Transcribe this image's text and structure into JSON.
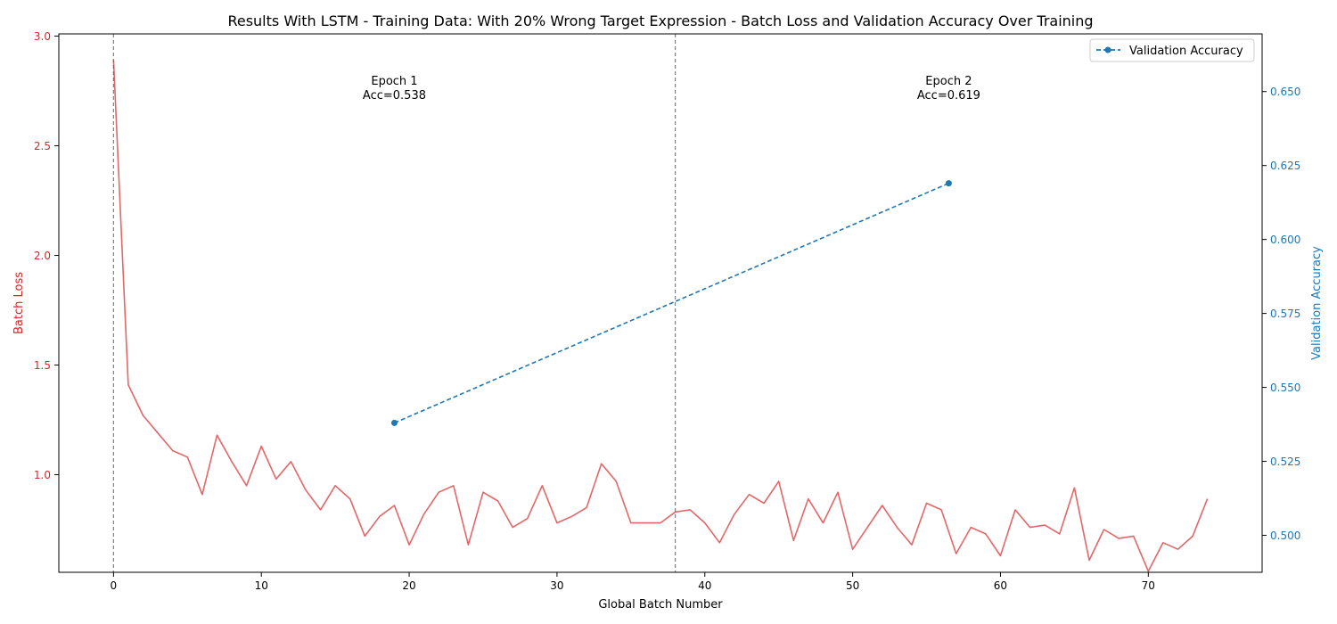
{
  "chart_data": {
    "type": "line",
    "title": "Results With LSTM - Training Data: With 20% Wrong Target Expression - Batch Loss and Validation Accuracy Over Training",
    "xlabel": "Global Batch Number",
    "ylabel_left": "Batch Loss",
    "ylabel_right": "Validation Accuracy",
    "xlim": [
      -3.7,
      77.7
    ],
    "ylim_left": [
      0.555,
      3.01
    ],
    "ylim_right": [
      0.4875,
      0.6695
    ],
    "x_ticks": [
      0,
      10,
      20,
      30,
      40,
      50,
      60,
      70
    ],
    "y_ticks_left": [
      1.0,
      1.5,
      2.0,
      2.5,
      3.0
    ],
    "y_ticks_left_labels": [
      "1.0",
      "1.5",
      "2.0",
      "2.5",
      "3.0"
    ],
    "y_ticks_right": [
      0.5,
      0.525,
      0.55,
      0.575,
      0.6,
      0.625,
      0.65
    ],
    "y_ticks_right_labels": [
      "0.500",
      "0.525",
      "0.550",
      "0.575",
      "0.600",
      "0.625",
      "0.650"
    ],
    "colors": {
      "loss": "#d62728",
      "accuracy": "#1f77b4",
      "epoch_line": "#808080",
      "text": "#000000"
    },
    "series": [
      {
        "name": "Batch Loss",
        "axis": "left",
        "style": "solid",
        "x": [
          0,
          1,
          2,
          3,
          4,
          5,
          6,
          7,
          8,
          9,
          10,
          11,
          12,
          13,
          14,
          15,
          16,
          17,
          18,
          19,
          20,
          21,
          22,
          23,
          24,
          25,
          26,
          27,
          28,
          29,
          30,
          31,
          32,
          33,
          34,
          35,
          36,
          37,
          38,
          39,
          40,
          41,
          42,
          43,
          44,
          45,
          46,
          47,
          48,
          49,
          50,
          51,
          52,
          53,
          54,
          55,
          56,
          57,
          58,
          59,
          60,
          61,
          62,
          63,
          64,
          65,
          66,
          67,
          68,
          69,
          70,
          71,
          72,
          73,
          74
        ],
        "values": [
          2.89,
          1.41,
          1.27,
          1.19,
          1.11,
          1.08,
          0.91,
          1.18,
          1.06,
          0.95,
          1.13,
          0.98,
          1.06,
          0.93,
          0.84,
          0.95,
          0.89,
          0.72,
          0.81,
          0.86,
          0.68,
          0.82,
          0.92,
          0.95,
          0.68,
          0.92,
          0.88,
          0.76,
          0.8,
          0.95,
          0.78,
          0.81,
          0.85,
          1.05,
          0.97,
          0.78,
          0.78,
          0.78,
          0.83,
          0.84,
          0.78,
          0.69,
          0.82,
          0.91,
          0.87,
          0.97,
          0.7,
          0.89,
          0.78,
          0.92,
          0.66,
          0.76,
          0.86,
          0.76,
          0.68,
          0.87,
          0.84,
          0.64,
          0.76,
          0.73,
          0.63,
          0.84,
          0.76,
          0.77,
          0.73,
          0.94,
          0.61,
          0.75,
          0.71,
          0.72,
          0.56,
          0.69,
          0.66,
          0.72,
          0.89
        ]
      },
      {
        "name": "Validation Accuracy",
        "axis": "right",
        "style": "dashed",
        "marker": "circle",
        "x": [
          19,
          56.5
        ],
        "values": [
          0.538,
          0.619
        ]
      }
    ],
    "epoch_lines": [
      0,
      38
    ],
    "annotations": [
      {
        "line1": "Epoch 1",
        "line2": "Acc=0.538",
        "x": 19
      },
      {
        "line1": "Epoch 2",
        "line2": "Acc=0.619",
        "x": 56.5
      }
    ],
    "legend": {
      "position": "top-right",
      "entries": [
        "Validation Accuracy"
      ]
    }
  }
}
